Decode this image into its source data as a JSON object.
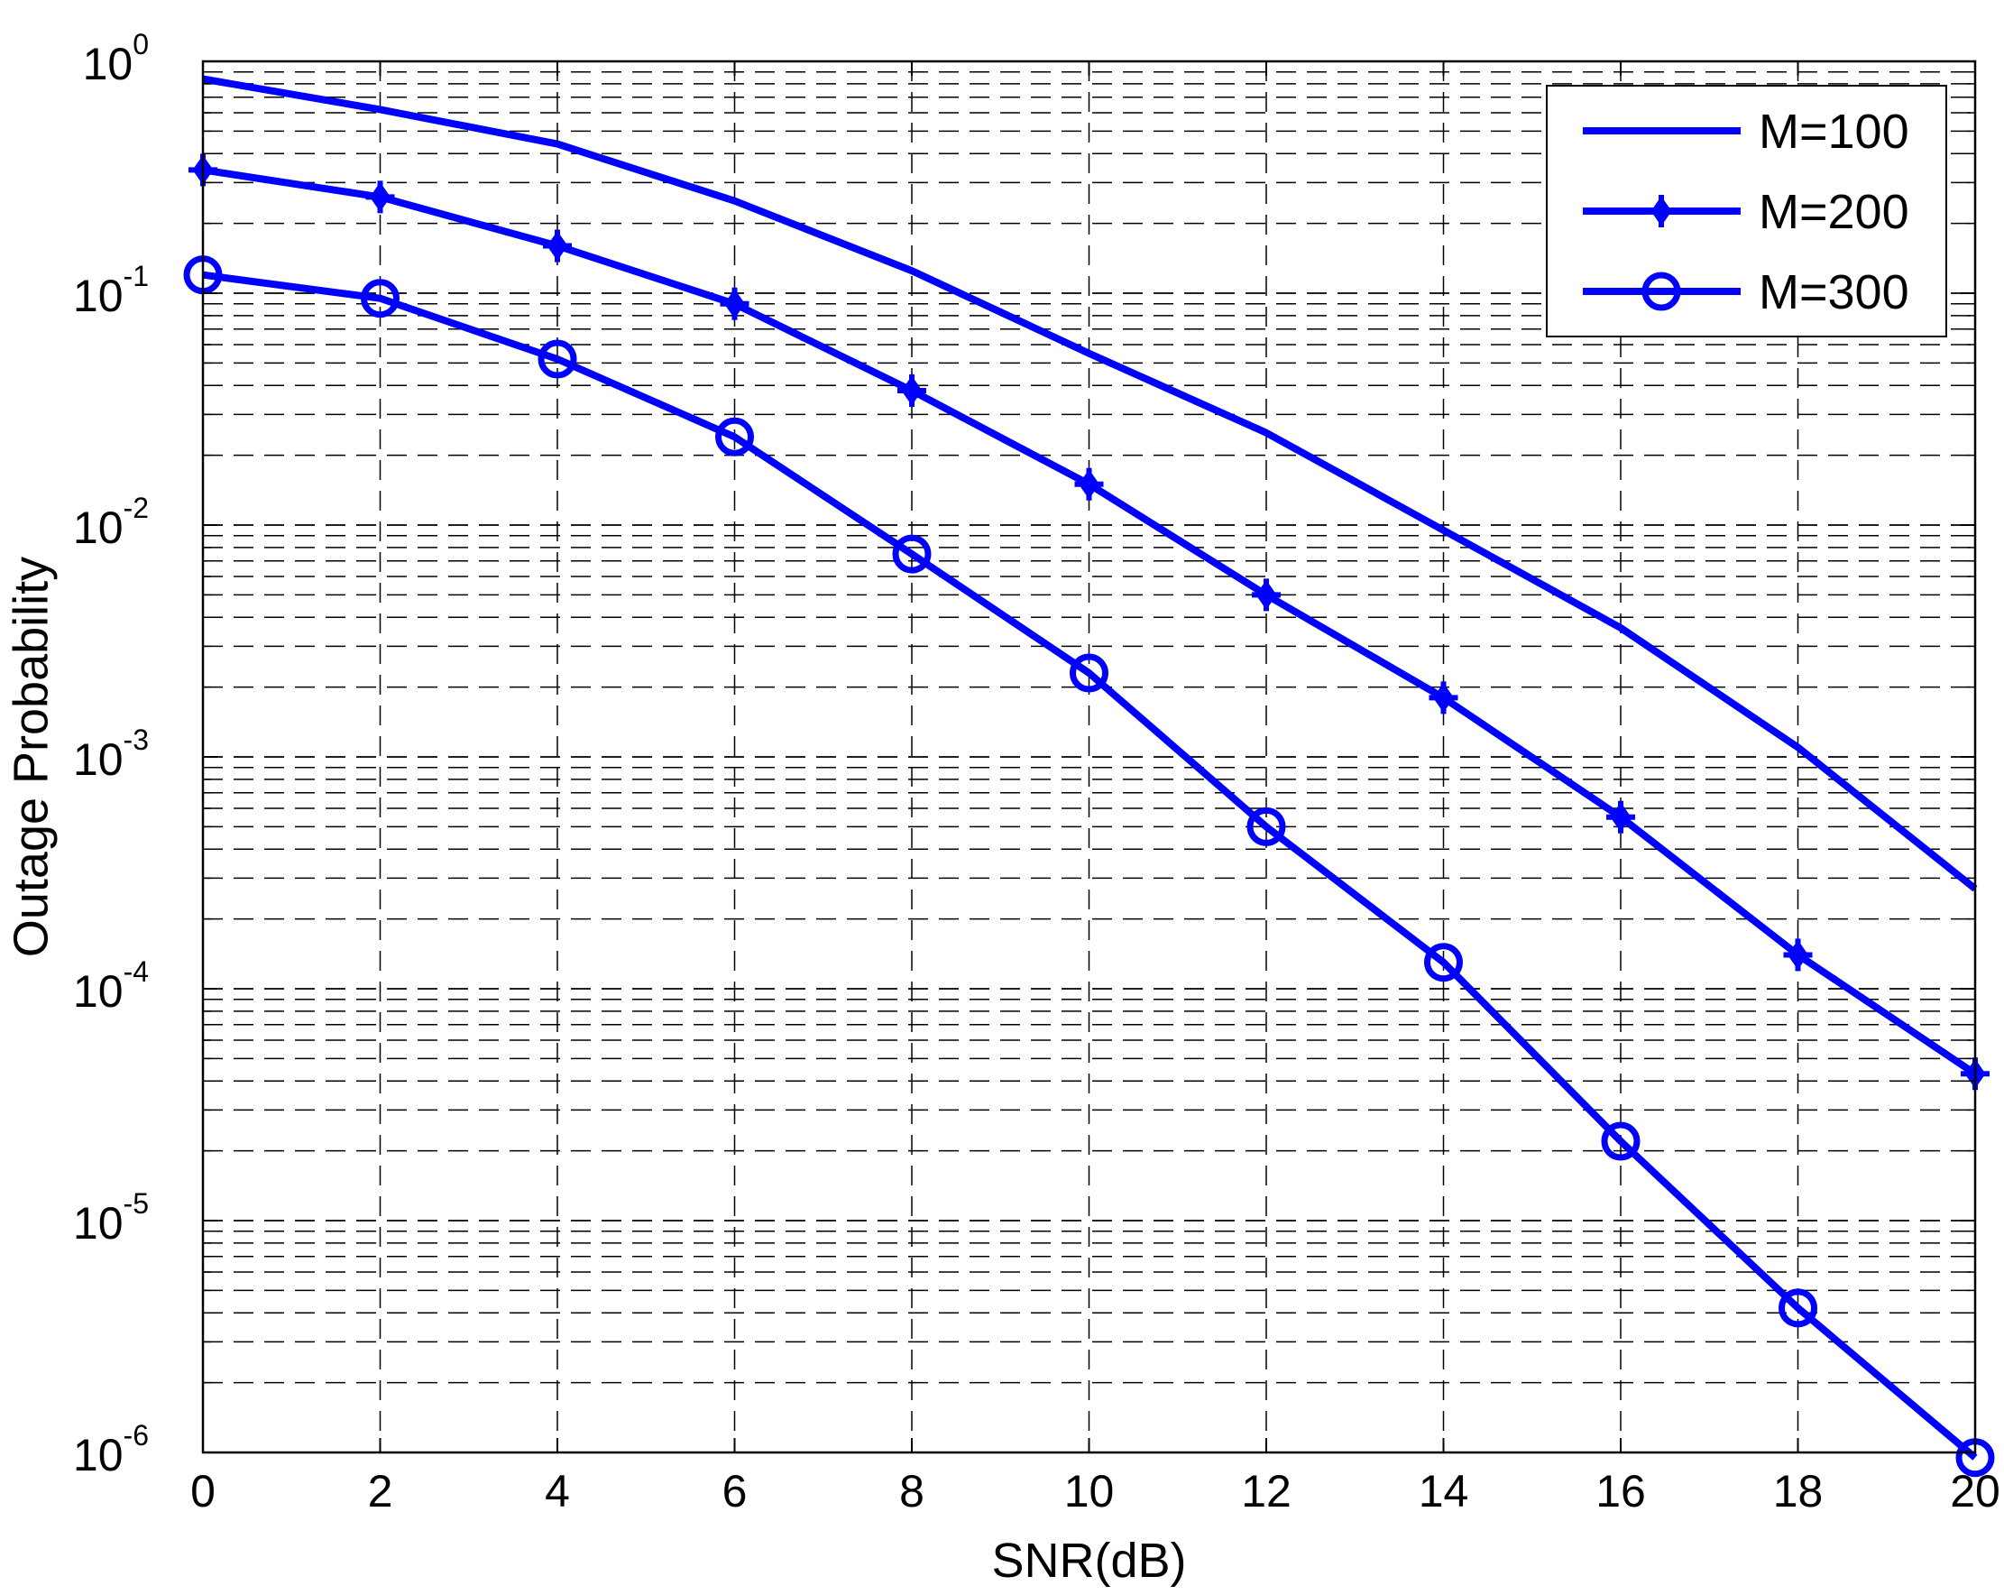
{
  "chart_data": {
    "type": "line",
    "title": "",
    "xlabel": "SNR(dB)",
    "ylabel": "Outage Probability",
    "x_scale": "linear",
    "y_scale": "log",
    "xlim": [
      0,
      20
    ],
    "ylim": [
      1e-06,
      1
    ],
    "x_ticks": [
      0,
      2,
      4,
      6,
      8,
      10,
      12,
      14,
      16,
      18,
      20
    ],
    "x_tick_labels": [
      "0",
      "2",
      "4",
      "6",
      "8",
      "10",
      "12",
      "14",
      "16",
      "18",
      "20"
    ],
    "y_ticks": [
      {
        "value": 1.0,
        "base": "10",
        "exp": "0"
      },
      {
        "value": 0.1,
        "base": "10",
        "exp": "-1"
      },
      {
        "value": 0.01,
        "base": "10",
        "exp": "-2"
      },
      {
        "value": 0.001,
        "base": "10",
        "exp": "-3"
      },
      {
        "value": 0.0001,
        "base": "10",
        "exp": "-4"
      },
      {
        "value": 1e-05,
        "base": "10",
        "exp": "-5"
      },
      {
        "value": 1e-06,
        "base": "10",
        "exp": "-6"
      }
    ],
    "grid": true,
    "grid_style": "dashed",
    "minor_grid": true,
    "legend_position": "top-right",
    "series": [
      {
        "name": "M=100",
        "color": "#0000ff",
        "marker": "none",
        "x": [
          0,
          2,
          4,
          6,
          8,
          10,
          12,
          14,
          16,
          18,
          20
        ],
        "y": [
          0.84,
          0.62,
          0.44,
          0.25,
          0.125,
          0.055,
          0.025,
          0.0095,
          0.0036,
          0.0011,
          0.00027
        ]
      },
      {
        "name": "M=200",
        "color": "#0000ff",
        "marker": "diamond-plus",
        "x": [
          0,
          2,
          4,
          6,
          8,
          10,
          12,
          14,
          16,
          18,
          20
        ],
        "y": [
          0.34,
          0.26,
          0.16,
          0.09,
          0.038,
          0.015,
          0.005,
          0.0018,
          0.00055,
          0.00014,
          4.3e-05
        ]
      },
      {
        "name": "M=300",
        "color": "#0000ff",
        "marker": "circle",
        "x": [
          0,
          2,
          4,
          6,
          8,
          10,
          12,
          14,
          16,
          18,
          20
        ],
        "y": [
          0.12,
          0.095,
          0.052,
          0.024,
          0.0075,
          0.0023,
          0.0005,
          0.00013,
          2.2e-05,
          4.2e-06,
          9.5e-07
        ]
      }
    ]
  }
}
